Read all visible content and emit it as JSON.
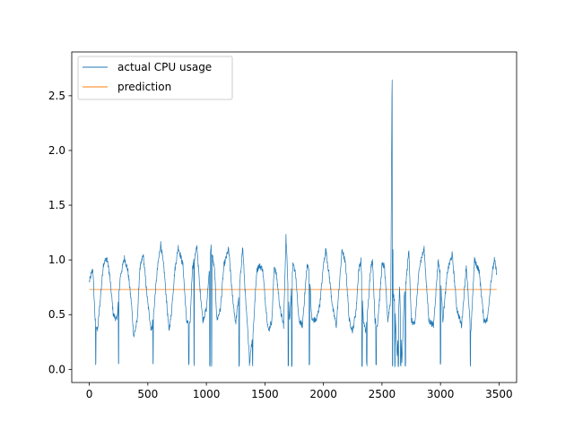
{
  "chart_data": {
    "type": "line",
    "title": "",
    "xlabel": "",
    "ylabel": "",
    "xlim": [
      -150,
      3650
    ],
    "ylim": [
      -0.12,
      2.9
    ],
    "x_ticks": [
      0,
      500,
      1000,
      1500,
      2000,
      2500,
      3000,
      3500
    ],
    "x_tick_labels": [
      "0",
      "500",
      "1000",
      "1500",
      "2000",
      "2500",
      "3000",
      "3500"
    ],
    "y_ticks": [
      0.0,
      0.5,
      1.0,
      1.5,
      2.0,
      2.5
    ],
    "y_tick_labels": [
      "0.0",
      "0.5",
      "1.0",
      "1.5",
      "2.0",
      "2.5"
    ],
    "grid": false,
    "legend_position": "upper-left",
    "series": [
      {
        "name": "actual CPU usage",
        "color": "#1f77b4",
        "x": [
          0,
          30,
          50,
          70,
          120,
          150,
          175,
          205,
          235,
          265,
          300,
          330,
          360,
          380,
          410,
          430,
          460,
          500,
          530,
          550,
          580,
          610,
          640,
          680,
          700,
          730,
          760,
          800,
          830,
          860,
          880,
          920,
          940,
          970,
          1000,
          1040,
          1070,
          1090,
          1120,
          1150,
          1190,
          1220,
          1250,
          1280,
          1310,
          1340,
          1370,
          1400,
          1430,
          1450,
          1480,
          1510,
          1530,
          1560,
          1580,
          1600,
          1630,
          1660,
          1680,
          1710,
          1740,
          1760,
          1790,
          1820,
          1860,
          1880,
          1900,
          1940,
          1970,
          2000,
          2020,
          2050,
          2080,
          2110,
          2130,
          2160,
          2190,
          2220,
          2250,
          2280,
          2300,
          2320,
          2340,
          2360,
          2380,
          2400,
          2420,
          2440,
          2460,
          2480,
          2500,
          2520,
          2550,
          2575,
          2585,
          2590,
          2595,
          2610,
          2630,
          2650,
          2670,
          2690,
          2710,
          2730,
          2750,
          2780,
          2820,
          2860,
          2900,
          2940,
          2980,
          3000,
          3020,
          3060,
          3100,
          3140,
          3180,
          3220,
          3250,
          3260,
          3290,
          3330,
          3370,
          3400,
          3430,
          3460,
          3480
        ],
        "y": [
          0.8,
          0.92,
          0.45,
          0.35,
          0.96,
          1.02,
          0.85,
          0.5,
          0.45,
          0.85,
          1.02,
          0.9,
          0.6,
          0.3,
          0.45,
          0.9,
          1.05,
          0.6,
          0.35,
          0.52,
          0.9,
          1.15,
          0.9,
          0.35,
          0.5,
          0.9,
          1.12,
          0.95,
          0.45,
          0.4,
          0.92,
          1.12,
          0.8,
          0.45,
          0.55,
          1.12,
          0.9,
          0.45,
          0.55,
          0.95,
          1.1,
          0.7,
          0.42,
          0.7,
          1.12,
          0.55,
          0.1,
          0.35,
          0.9,
          0.95,
          0.92,
          0.55,
          0.35,
          0.45,
          0.95,
          0.85,
          0.55,
          0.4,
          1.22,
          0.45,
          0.95,
          0.9,
          0.45,
          0.4,
          0.95,
          0.9,
          0.45,
          0.45,
          0.6,
          0.95,
          1.1,
          0.85,
          0.55,
          0.4,
          0.7,
          1.1,
          0.95,
          0.45,
          0.35,
          0.55,
          0.9,
          1.0,
          0.45,
          0.35,
          0.55,
          0.9,
          1.0,
          0.45,
          0.4,
          0.65,
          0.95,
          0.95,
          0.45,
          0.65,
          2.5,
          2.8,
          0.7,
          0.6,
          0.1,
          0.75,
          0.05,
          0.65,
          0.85,
          1.1,
          0.45,
          0.4,
          0.95,
          1.1,
          0.45,
          0.4,
          1.0,
          0.85,
          0.45,
          0.9,
          1.05,
          0.55,
          0.4,
          0.95,
          0.45,
          0.35,
          1.0,
          0.9,
          0.45,
          0.45,
          0.8,
          1.0,
          0.88
        ]
      },
      {
        "name": "prediction",
        "color": "#ff7f0e",
        "x": [
          0,
          3480
        ],
        "y": [
          0.73,
          0.73
        ]
      }
    ],
    "spikes_to_near_zero_at_x": [
      55,
      250,
      545,
      850,
      895,
      1030,
      1045,
      1280,
      1370,
      1395,
      1700,
      1730,
      1880,
      2330,
      2370,
      2450,
      2590,
      2610,
      2640,
      2660,
      2700,
      3000,
      3255
    ]
  }
}
